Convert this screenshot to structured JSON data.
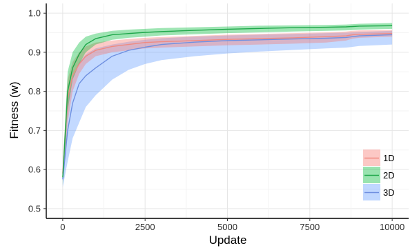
{
  "chart_data": {
    "type": "line",
    "title": "",
    "xlabel": "Update",
    "ylabel": "Fitness (w)",
    "xlim": [
      -500,
      10500
    ],
    "ylim": [
      0.475,
      1.025
    ],
    "xticks": [
      0,
      2500,
      5000,
      7500,
      10000
    ],
    "xtick_labels": [
      "0",
      "2500",
      "5000",
      "7500",
      "10000"
    ],
    "yticks": [
      0.5,
      0.6,
      0.7,
      0.8,
      0.9,
      1.0
    ],
    "ytick_labels": [
      "0.5",
      "0.6",
      "0.7",
      "0.8",
      "0.9",
      "1.0"
    ],
    "grid": true,
    "legend_position": "bottom-right",
    "x": [
      0,
      150,
      300,
      500,
      700,
      1000,
      1500,
      2000,
      2500,
      3000,
      4000,
      5000,
      6000,
      7000,
      8000,
      8600,
      8800,
      9000,
      10000
    ],
    "series": [
      {
        "name": "1D",
        "color": "#f08a80",
        "fill": "#f8766d",
        "values": [
          0.59,
          0.78,
          0.84,
          0.87,
          0.89,
          0.905,
          0.915,
          0.92,
          0.925,
          0.927,
          0.93,
          0.933,
          0.935,
          0.937,
          0.94,
          0.942,
          0.945,
          0.946,
          0.948
        ],
        "lower": [
          0.57,
          0.72,
          0.8,
          0.845,
          0.87,
          0.89,
          0.9,
          0.905,
          0.91,
          0.912,
          0.915,
          0.918,
          0.92,
          0.922,
          0.925,
          0.93,
          0.935,
          0.937,
          0.94
        ],
        "upper": [
          0.61,
          0.83,
          0.875,
          0.9,
          0.915,
          0.925,
          0.93,
          0.934,
          0.937,
          0.939,
          0.942,
          0.945,
          0.947,
          0.949,
          0.951,
          0.953,
          0.955,
          0.956,
          0.957
        ]
      },
      {
        "name": "2D",
        "color": "#1fa74a",
        "fill": "#00ba38",
        "values": [
          0.58,
          0.8,
          0.86,
          0.895,
          0.92,
          0.935,
          0.945,
          0.948,
          0.951,
          0.953,
          0.956,
          0.959,
          0.961,
          0.963,
          0.964,
          0.965,
          0.966,
          0.967,
          0.968
        ],
        "lower": [
          0.56,
          0.75,
          0.83,
          0.87,
          0.9,
          0.92,
          0.932,
          0.937,
          0.94,
          0.943,
          0.946,
          0.949,
          0.951,
          0.953,
          0.955,
          0.956,
          0.957,
          0.958,
          0.96
        ],
        "upper": [
          0.6,
          0.85,
          0.9,
          0.925,
          0.94,
          0.948,
          0.955,
          0.958,
          0.96,
          0.962,
          0.964,
          0.966,
          0.968,
          0.969,
          0.97,
          0.971,
          0.972,
          0.973,
          0.975
        ]
      },
      {
        "name": "3D",
        "color": "#6e8fe0",
        "fill": "#619cff",
        "values": [
          0.575,
          0.7,
          0.77,
          0.82,
          0.84,
          0.86,
          0.89,
          0.905,
          0.913,
          0.92,
          0.926,
          0.93,
          0.932,
          0.934,
          0.936,
          0.938,
          0.94,
          0.942,
          0.945
        ],
        "lower": [
          0.555,
          0.62,
          0.68,
          0.72,
          0.76,
          0.79,
          0.83,
          0.855,
          0.87,
          0.88,
          0.89,
          0.897,
          0.902,
          0.906,
          0.91,
          0.912,
          0.914,
          0.916,
          0.92
        ],
        "upper": [
          0.6,
          0.78,
          0.84,
          0.875,
          0.895,
          0.91,
          0.92,
          0.927,
          0.932,
          0.936,
          0.94,
          0.943,
          0.945,
          0.947,
          0.949,
          0.95,
          0.951,
          0.952,
          0.955
        ]
      }
    ]
  }
}
